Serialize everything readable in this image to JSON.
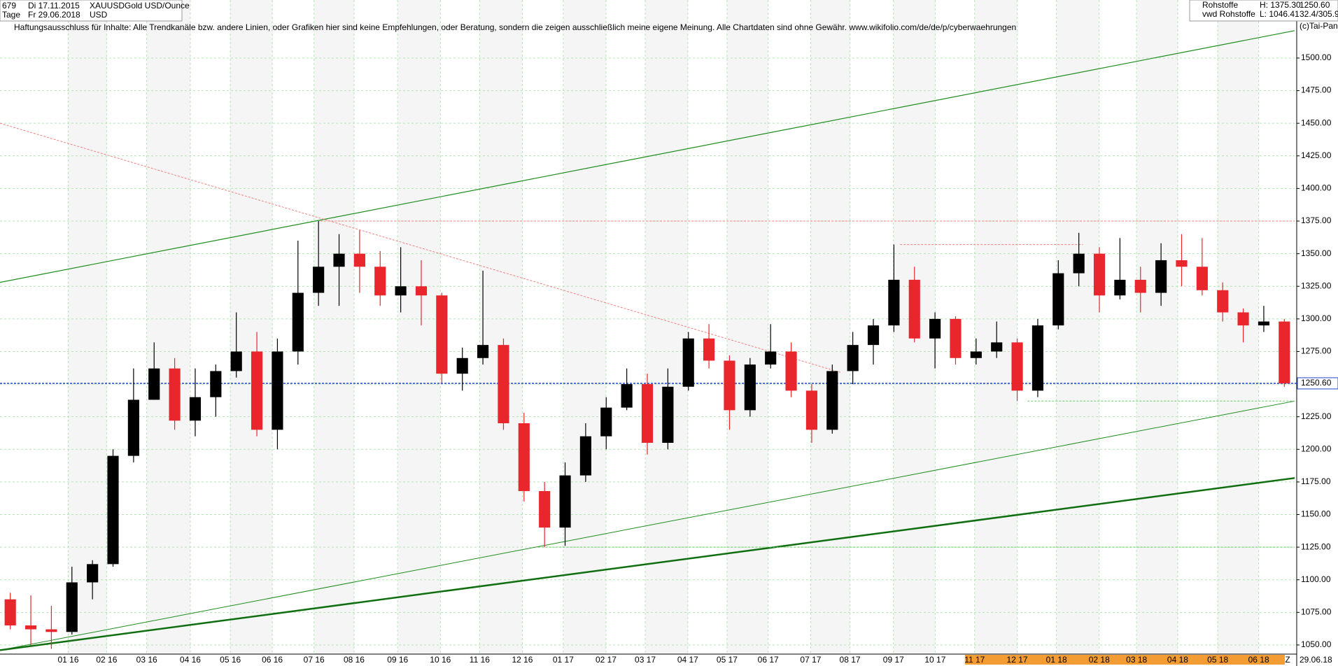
{
  "chart_data": {
    "type": "candlestick",
    "title": "Gold USD/Ounce",
    "header": {
      "count": "679",
      "start_date": "Di 17.11.2015",
      "symbol": "XAUUSD",
      "period": "Tage",
      "end_date": "Fr 29.06.2018",
      "currency": "USD",
      "market": "Rohstoffe",
      "high": "H: 1375.30",
      "source": "vwd Rohstoffe",
      "low": "L: 1046.41",
      "ratio": "32.4/305.9",
      "copyright": "(c)Tai-Pan"
    },
    "disclaimer": "Haftungsausschluss für Inhalte: Alle Trendkanäle bzw. andere Linien, oder Grafiken hier sind keine Empfehlungen, oder Beratung, sondern die zeigen ausschließlich meine eigene Meinung. Alle Chartdaten sind ohne Gewähr.  www.wikifolio.com/de/de/p/cyberwaehrungen",
    "current": {
      "value": 1250.6,
      "label": "1250.60"
    },
    "end_label": "29.06.18",
    "z_label": "Z",
    "up_color": "#000000",
    "down_color": "#e8262b",
    "open": [
      1085,
      1065,
      1062,
      1060,
      1098,
      1112,
      1195,
      1238,
      1262,
      1222,
      1240,
      1260,
      1275,
      1215,
      1275,
      1320,
      1340,
      1350,
      1340,
      1318,
      1325,
      1318,
      1258,
      1270,
      1280,
      1220,
      1168,
      1140,
      1180,
      1210,
      1232,
      1250,
      1205,
      1248,
      1285,
      1268,
      1230,
      1265,
      1275,
      1245,
      1215,
      1260,
      1280,
      1295,
      1330,
      1285,
      1300,
      1270,
      1275,
      1282,
      1245,
      1295,
      1335,
      1350,
      1318,
      1330,
      1320,
      1345,
      1340,
      1322,
      1305,
      1295,
      1298
    ],
    "high": [
      1090,
      1088,
      1080,
      1110,
      1115,
      1200,
      1262,
      1282,
      1270,
      1262,
      1265,
      1305,
      1290,
      1285,
      1360,
      1375,
      1365,
      1368,
      1352,
      1355,
      1345,
      1320,
      1278,
      1337,
      1285,
      1228,
      1175,
      1190,
      1220,
      1240,
      1262,
      1258,
      1262,
      1290,
      1296,
      1272,
      1270,
      1296,
      1282,
      1250,
      1265,
      1290,
      1300,
      1357,
      1340,
      1305,
      1302,
      1285,
      1298,
      1285,
      1300,
      1345,
      1366,
      1355,
      1362,
      1340,
      1358,
      1365,
      1362,
      1328,
      1308,
      1310,
      1300
    ],
    "low": [
      1062,
      1050,
      1047,
      1058,
      1085,
      1110,
      1190,
      1238,
      1215,
      1210,
      1225,
      1255,
      1210,
      1200,
      1265,
      1310,
      1310,
      1320,
      1310,
      1305,
      1295,
      1250,
      1245,
      1265,
      1215,
      1160,
      1125,
      1126,
      1175,
      1200,
      1230,
      1196,
      1200,
      1245,
      1262,
      1215,
      1225,
      1262,
      1240,
      1205,
      1212,
      1250,
      1265,
      1290,
      1282,
      1262,
      1265,
      1265,
      1270,
      1237,
      1240,
      1292,
      1325,
      1305,
      1315,
      1305,
      1310,
      1325,
      1318,
      1298,
      1282,
      1290,
      1248
    ],
    "close": [
      1065,
      1062,
      1060,
      1098,
      1112,
      1195,
      1238,
      1262,
      1222,
      1240,
      1260,
      1275,
      1215,
      1275,
      1320,
      1340,
      1350,
      1340,
      1318,
      1325,
      1318,
      1258,
      1270,
      1280,
      1220,
      1168,
      1140,
      1180,
      1210,
      1232,
      1250,
      1205,
      1248,
      1285,
      1268,
      1230,
      1265,
      1275,
      1245,
      1215,
      1260,
      1280,
      1295,
      1330,
      1285,
      1300,
      1270,
      1275,
      1282,
      1245,
      1295,
      1335,
      1350,
      1318,
      1330,
      1320,
      1345,
      1340,
      1322,
      1305,
      1295,
      1298,
      1250.6
    ],
    "xlim": [
      -0.5,
      62.5
    ],
    "xticks": [
      {
        "value": 2.82,
        "label": "01 16"
      },
      {
        "value": 4.69,
        "label": "02 16"
      },
      {
        "value": 6.64,
        "label": "03 16"
      },
      {
        "value": 8.76,
        "label": "04 16"
      },
      {
        "value": 10.71,
        "label": "05 16"
      },
      {
        "value": 12.75,
        "label": "06 16"
      },
      {
        "value": 14.78,
        "label": "07 16"
      },
      {
        "value": 16.73,
        "label": "08 16"
      },
      {
        "value": 18.85,
        "label": "09 16"
      },
      {
        "value": 20.93,
        "label": "10 16"
      },
      {
        "value": 22.84,
        "label": "11 16"
      },
      {
        "value": 24.92,
        "label": "12 16"
      },
      {
        "value": 26.91,
        "label": "01 17"
      },
      {
        "value": 28.99,
        "label": "02 17"
      },
      {
        "value": 30.9,
        "label": "03 17"
      },
      {
        "value": 32.97,
        "label": "04 17"
      },
      {
        "value": 34.88,
        "label": "05 17"
      },
      {
        "value": 36.88,
        "label": "06 17"
      },
      {
        "value": 38.95,
        "label": "07 17"
      },
      {
        "value": 40.86,
        "label": "08 17"
      },
      {
        "value": 42.98,
        "label": "09 17"
      },
      {
        "value": 45.01,
        "label": "10 17"
      },
      {
        "value": 46.93,
        "label": "11 17"
      },
      {
        "value": 49.0,
        "label": "12 17"
      },
      {
        "value": 50.91,
        "label": "01 18"
      },
      {
        "value": 52.99,
        "label": "02 18"
      },
      {
        "value": 54.81,
        "label": "03 18"
      },
      {
        "value": 56.81,
        "label": "04 18"
      },
      {
        "value": 58.76,
        "label": "05 18"
      },
      {
        "value": 60.75,
        "label": "06 18"
      }
    ],
    "ylim": [
      1043,
      1544.5
    ],
    "yticks": [
      {
        "value": 1050,
        "label": "1050.00"
      },
      {
        "value": 1075,
        "label": "1075.00"
      },
      {
        "value": 1100,
        "label": "1100.00"
      },
      {
        "value": 1125,
        "label": "1125.00"
      },
      {
        "value": 1150,
        "label": "1150.00"
      },
      {
        "value": 1175,
        "label": "1175.00"
      },
      {
        "value": 1200,
        "label": "1200.00"
      },
      {
        "value": 1225,
        "label": "1225.00"
      },
      {
        "value": 1250,
        "label": "1250.00"
      },
      {
        "value": 1275,
        "label": "1275.00"
      },
      {
        "value": 1300,
        "label": "1300.00"
      },
      {
        "value": 1325,
        "label": "1325.00"
      },
      {
        "value": 1350,
        "label": "1350.00"
      },
      {
        "value": 1375,
        "label": "1375.00"
      },
      {
        "value": 1400,
        "label": "1400.00"
      },
      {
        "value": 1425,
        "label": "1425.00"
      },
      {
        "value": 1450,
        "label": "1450.00"
      },
      {
        "value": 1475,
        "label": "1475.00"
      },
      {
        "value": 1500,
        "label": "1500.00"
      }
    ],
    "grid": true,
    "lines": [
      {
        "color": "#1e8c1e",
        "width": 1.2,
        "dash": "none",
        "x": [
          -0.5,
          62.5
        ],
        "y": [
          1328,
          1521
        ]
      },
      {
        "color": "#1e8c1e",
        "width": 1,
        "dash": "none",
        "x": [
          -0.5,
          62.5
        ],
        "y": [
          1046,
          1237
        ]
      },
      {
        "color": "#0f6e0f",
        "width": 2.5,
        "dash": "none",
        "x": [
          -0.5,
          62.5
        ],
        "y": [
          1046,
          1178
        ]
      },
      {
        "color": "#f08080",
        "width": 1,
        "dash": "3,2",
        "x": [
          -0.5,
          40.4
        ],
        "y": [
          1450,
          1259
        ]
      },
      {
        "color": "#f08080",
        "width": 1,
        "dash": "3,2",
        "x": [
          15.1,
          62.5
        ],
        "y": [
          1375,
          1375
        ]
      },
      {
        "color": "#f08080",
        "width": 1,
        "dash": "3,2",
        "x": [
          43.3,
          52.2
        ],
        "y": [
          1357,
          1357
        ]
      },
      {
        "color": "#66cc66",
        "width": 1,
        "dash": "3,2",
        "x": [
          25.7,
          62.5
        ],
        "y": [
          1125,
          1125
        ]
      },
      {
        "color": "#66cc66",
        "width": 1,
        "dash": "3,2",
        "x": [
          49.5,
          62.5
        ],
        "y": [
          1237,
          1237
        ]
      }
    ]
  }
}
